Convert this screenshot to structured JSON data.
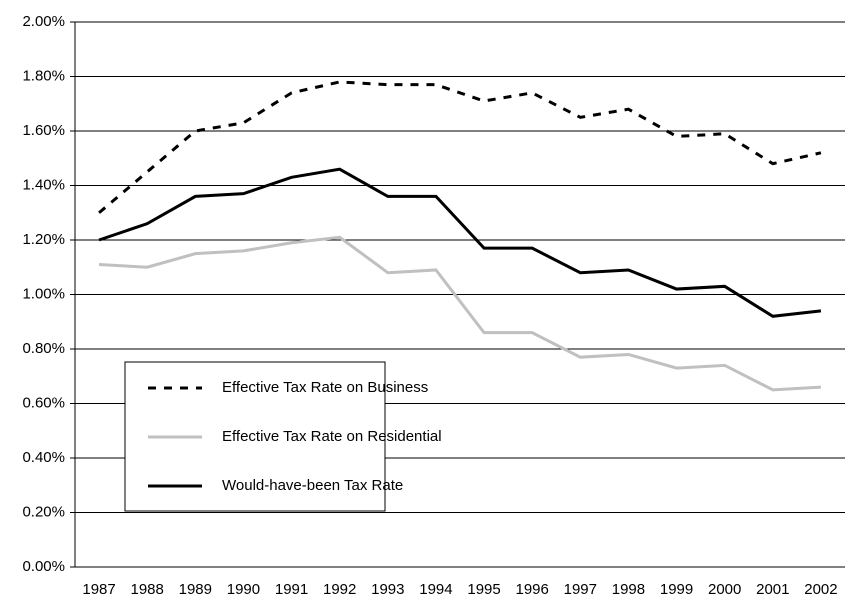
{
  "chart_data": {
    "type": "line",
    "categories": [
      "1987",
      "1988",
      "1989",
      "1990",
      "1991",
      "1992",
      "1993",
      "1994",
      "1995",
      "1996",
      "1997",
      "1998",
      "1999",
      "2000",
      "2001",
      "2002"
    ],
    "series": [
      {
        "name": "Effective Tax Rate on Business",
        "color": "#000000",
        "dash": true,
        "values": [
          1.3,
          1.45,
          1.6,
          1.63,
          1.74,
          1.78,
          1.77,
          1.77,
          1.71,
          1.74,
          1.65,
          1.68,
          1.58,
          1.59,
          1.48,
          1.52
        ]
      },
      {
        "name": "Effective Tax Rate on Residential",
        "color": "#c0c0c0",
        "dash": false,
        "values": [
          1.11,
          1.1,
          1.15,
          1.16,
          1.19,
          1.21,
          1.08,
          1.09,
          0.86,
          0.86,
          0.77,
          0.78,
          0.73,
          0.74,
          0.65,
          0.66
        ]
      },
      {
        "name": "Would-have-been Tax Rate",
        "color": "#000000",
        "dash": false,
        "values": [
          1.2,
          1.26,
          1.36,
          1.37,
          1.43,
          1.46,
          1.36,
          1.36,
          1.17,
          1.17,
          1.08,
          1.09,
          1.02,
          1.03,
          0.92,
          0.94
        ]
      }
    ],
    "ylim": [
      0,
      2
    ],
    "yticks": [
      {
        "value": 0,
        "label": "0.00%"
      },
      {
        "value": 0.2,
        "label": "0.20%"
      },
      {
        "value": 0.4,
        "label": "0.40%"
      },
      {
        "value": 0.6,
        "label": "0.60%"
      },
      {
        "value": 0.8,
        "label": "0.80%"
      },
      {
        "value": 1.0,
        "label": "1.00%"
      },
      {
        "value": 1.2,
        "label": "1.20%"
      },
      {
        "value": 1.4,
        "label": "1.40%"
      },
      {
        "value": 1.6,
        "label": "1.60%"
      },
      {
        "value": 1.8,
        "label": "1.80%"
      },
      {
        "value": 2.0,
        "label": "2.00%"
      }
    ],
    "grid": true
  }
}
